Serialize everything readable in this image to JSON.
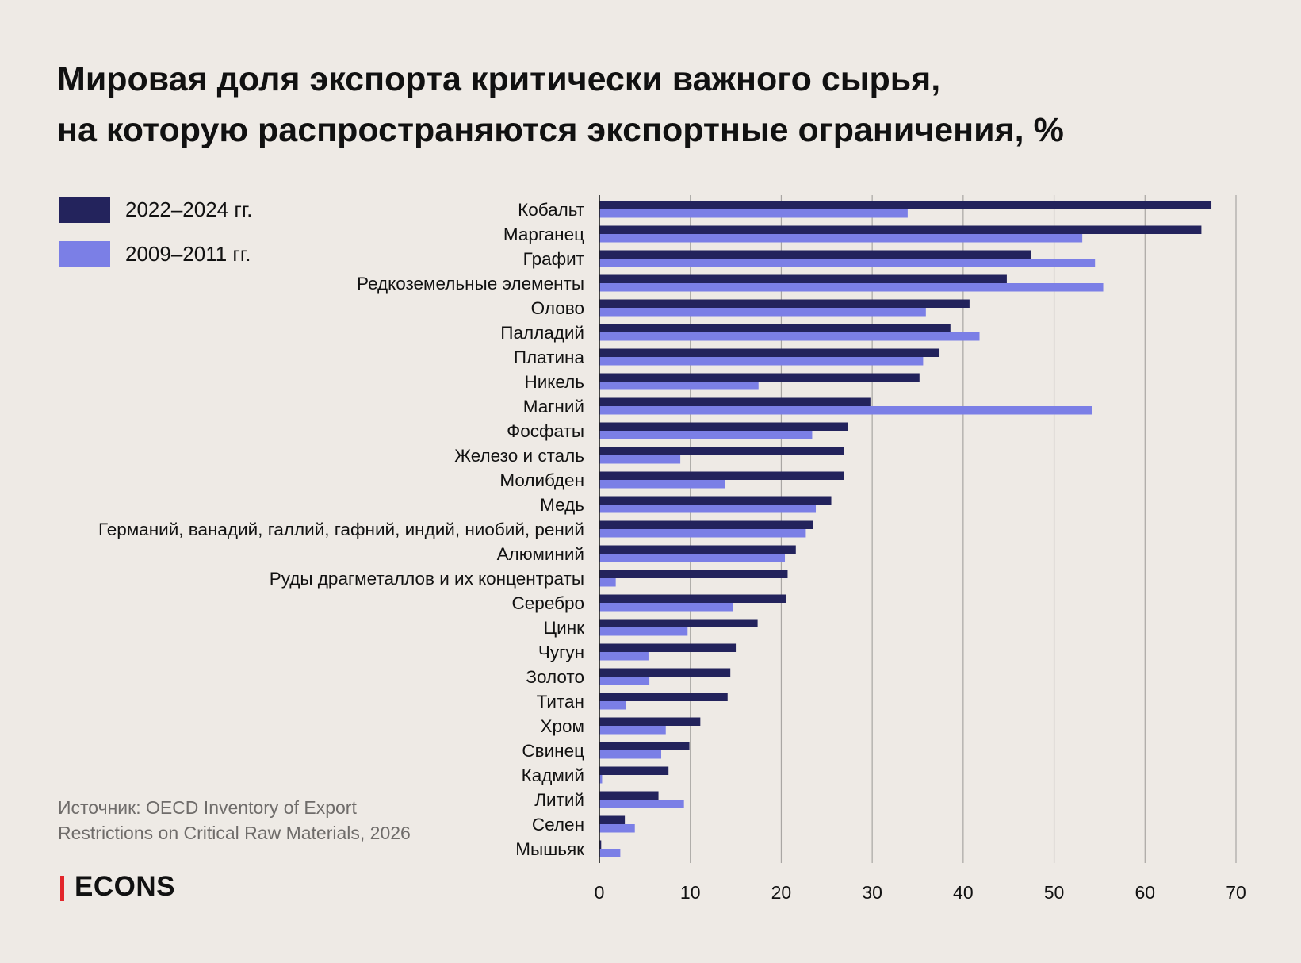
{
  "header": {
    "title_line1": "Мировая доля экспорта критически важного сырья,",
    "title_line2": "на которую распространяются экспортные ограничения, %"
  },
  "legend": [
    {
      "label": "2022–2024 гг.",
      "color": "#23235C"
    },
    {
      "label": "2009–2011 гг.",
      "color": "#7B7FE6"
    }
  ],
  "source": {
    "line1": "Источник: OECD Inventory of Export",
    "line2": "Restrictions on Critical Raw Materials, 2026"
  },
  "logo": {
    "text": "ECONS",
    "accent_color": "#E3262B"
  },
  "chart_data": {
    "type": "bar",
    "orientation": "horizontal",
    "title": "Мировая доля экспорта критически важного сырья, на которую распространяются экспортные ограничения, %",
    "xlim": [
      0,
      70
    ],
    "xticks": [
      0,
      10,
      20,
      30,
      40,
      50,
      60,
      70
    ],
    "grid": "vertical",
    "legend_position": "top-left",
    "categories": [
      "Кобальт",
      "Марганец",
      "Графит",
      "Редкоземельные элементы",
      "Олово",
      "Палладий",
      "Платина",
      "Никель",
      "Магний",
      "Фосфаты",
      "Железо и сталь",
      "Молибден",
      "Медь",
      "Германий, ванадий, галлий, гафний, индий, ниобий, рений",
      "Алюминий",
      "Руды драгметаллов и их концентраты",
      "Серебро",
      "Цинк",
      "Чугун",
      "Золото",
      "Титан",
      "Хром",
      "Свинец",
      "Кадмий",
      "Литий",
      "Селен",
      "Мышьяк"
    ],
    "series": [
      {
        "name": "2022–2024 гг.",
        "color": "#23235C",
        "values": [
          67.3,
          66.2,
          47.5,
          44.8,
          40.7,
          38.6,
          37.4,
          35.2,
          29.8,
          27.3,
          26.9,
          26.9,
          25.5,
          23.5,
          21.6,
          20.7,
          20.5,
          17.4,
          15.0,
          14.4,
          14.1,
          11.1,
          9.9,
          7.6,
          6.5,
          2.8,
          0.2
        ]
      },
      {
        "name": "2009–2011 гг.",
        "color": "#7B7FE6",
        "values": [
          33.9,
          53.1,
          54.5,
          55.4,
          35.9,
          41.8,
          35.6,
          17.5,
          54.2,
          23.4,
          8.9,
          13.8,
          23.8,
          22.7,
          20.4,
          1.8,
          14.7,
          9.7,
          5.4,
          5.5,
          2.9,
          7.3,
          6.8,
          0.3,
          9.3,
          3.9,
          2.3
        ]
      }
    ]
  }
}
